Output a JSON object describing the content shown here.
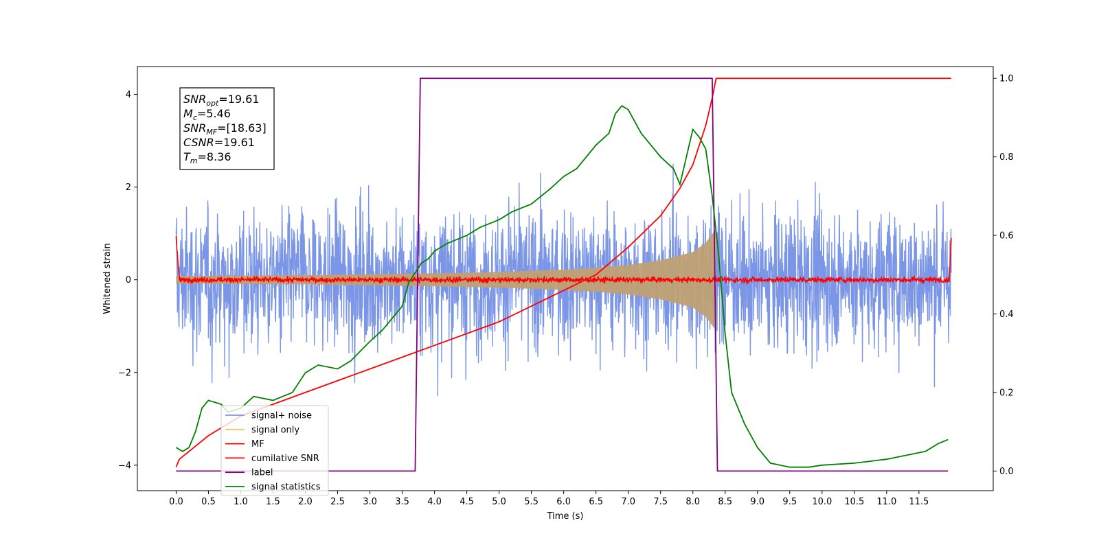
{
  "chart_data": {
    "type": "line",
    "xlabel": "Time (s)",
    "ylabel": "Whitened strain",
    "xlim": [
      -0.6,
      12.65
    ],
    "ylim": [
      -4.55,
      4.6
    ],
    "ylim_right": [
      -0.05,
      1.03
    ],
    "xticks": [
      "0.0",
      "0.5",
      "1.0",
      "1.5",
      "2.0",
      "2.5",
      "3.0",
      "3.5",
      "4.0",
      "4.5",
      "5.0",
      "5.5",
      "6.0",
      "6.5",
      "7.0",
      "7.5",
      "8.0",
      "8.5",
      "9.0",
      "9.5",
      "10.0",
      "10.5",
      "11.0",
      "11.5"
    ],
    "yticks_left": [
      "-4",
      "-2",
      "0",
      "2",
      "4"
    ],
    "yticks_right": [
      "0.0",
      "0.2",
      "0.4",
      "0.6",
      "0.8",
      "1.0"
    ],
    "annotation": [
      {
        "sym": "SNR",
        "sub": "opt",
        "val": "=19.61"
      },
      {
        "sym": "M",
        "sub": "c",
        "val": "=5.46"
      },
      {
        "sym": "SNR",
        "sub": "MF",
        "val": "=[18.63]"
      },
      {
        "sym": "CSNR",
        "sub": "",
        "val": "=19.61"
      },
      {
        "sym": "T",
        "sub": "m",
        "val": "=8.36"
      }
    ],
    "legend_position": "lower-left",
    "series": [
      {
        "name": "signal+ noise",
        "color": "#7b96e6",
        "axis": "left",
        "noise_sigma": 0.9,
        "t_range": [
          0.0,
          12.0
        ]
      },
      {
        "name": "signal only",
        "color": "#f5c46e",
        "axis": "left",
        "envelope": {
          "t": [
            0.0,
            2.0,
            4.0,
            5.0,
            6.0,
            6.5,
            7.0,
            7.5,
            8.0,
            8.2,
            8.36
          ],
          "amp": [
            0.08,
            0.1,
            0.14,
            0.17,
            0.22,
            0.26,
            0.32,
            0.42,
            0.6,
            0.8,
            1.1
          ]
        }
      },
      {
        "name": "MF",
        "color": "#ff0000",
        "axis": "left",
        "noise_sigma": 0.04,
        "t_range": [
          0.0,
          12.0
        ]
      },
      {
        "name": "cumilative SNR",
        "color": "#ff0000",
        "axis": "right",
        "t": [
          0.0,
          0.05,
          0.5,
          1.0,
          1.5,
          2.0,
          3.0,
          4.0,
          5.0,
          6.0,
          6.5,
          7.0,
          7.5,
          7.8,
          8.0,
          8.2,
          8.3,
          8.36,
          12.0
        ],
        "y": [
          0.01,
          0.03,
          0.09,
          0.14,
          0.17,
          0.2,
          0.26,
          0.32,
          0.38,
          0.46,
          0.5,
          0.57,
          0.65,
          0.72,
          0.78,
          0.88,
          0.95,
          1.0,
          1.0
        ]
      },
      {
        "name": "label",
        "color": "#800080",
        "axis": "right",
        "t": [
          0.0,
          3.7,
          3.78,
          8.3,
          8.38,
          11.95
        ],
        "y": [
          0.0,
          0.0,
          1.0,
          1.0,
          0.0,
          0.0
        ]
      },
      {
        "name": "signal statistics",
        "color": "#008000",
        "axis": "right",
        "t": [
          0.0,
          0.1,
          0.2,
          0.3,
          0.4,
          0.5,
          0.7,
          0.8,
          1.0,
          1.2,
          1.5,
          1.8,
          2.0,
          2.2,
          2.5,
          2.7,
          3.0,
          3.2,
          3.5,
          3.6,
          3.8,
          3.9,
          4.0,
          4.2,
          4.5,
          4.7,
          5.0,
          5.2,
          5.5,
          5.8,
          6.0,
          6.2,
          6.5,
          6.7,
          6.8,
          6.9,
          7.0,
          7.1,
          7.2,
          7.3,
          7.5,
          7.7,
          7.8,
          7.9,
          8.0,
          8.1,
          8.2,
          8.3,
          8.4,
          8.5,
          8.6,
          8.8,
          9.0,
          9.2,
          9.5,
          9.8,
          10.0,
          10.5,
          11.0,
          11.3,
          11.6,
          11.8,
          11.95
        ],
        "y": [
          0.06,
          0.05,
          0.06,
          0.1,
          0.16,
          0.18,
          0.17,
          0.15,
          0.16,
          0.19,
          0.18,
          0.2,
          0.25,
          0.27,
          0.26,
          0.28,
          0.33,
          0.36,
          0.42,
          0.48,
          0.53,
          0.54,
          0.56,
          0.58,
          0.6,
          0.62,
          0.64,
          0.66,
          0.68,
          0.72,
          0.75,
          0.77,
          0.83,
          0.86,
          0.91,
          0.93,
          0.92,
          0.89,
          0.86,
          0.84,
          0.8,
          0.77,
          0.73,
          0.8,
          0.87,
          0.85,
          0.82,
          0.7,
          0.55,
          0.35,
          0.2,
          0.12,
          0.06,
          0.02,
          0.01,
          0.01,
          0.015,
          0.02,
          0.03,
          0.04,
          0.05,
          0.07,
          0.08
        ]
      }
    ]
  }
}
